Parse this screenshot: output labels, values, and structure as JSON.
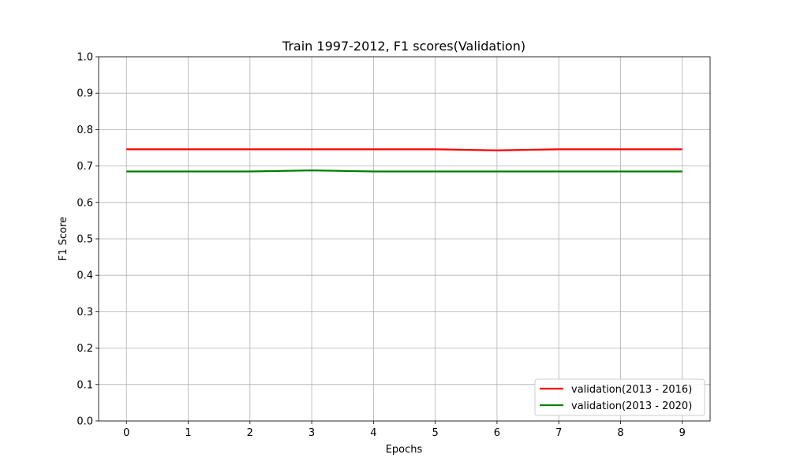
{
  "chart_data": {
    "type": "line",
    "title": "Train 1997-2012, F1 scores(Validation)",
    "xlabel": "Epochs",
    "ylabel": "F1 Score",
    "x": [
      0,
      1,
      2,
      3,
      4,
      5,
      6,
      7,
      8,
      9
    ],
    "xlim": [
      -0.45,
      9.45
    ],
    "ylim": [
      0,
      1.0
    ],
    "xticks": [
      "0",
      "1",
      "2",
      "3",
      "4",
      "5",
      "6",
      "7",
      "8",
      "9"
    ],
    "yticks": [
      "0.0",
      "0.1",
      "0.2",
      "0.3",
      "0.4",
      "0.5",
      "0.6",
      "0.7",
      "0.8",
      "0.9",
      "1.0"
    ],
    "grid": true,
    "legend_position": "lower-right",
    "series": [
      {
        "name": "validation(2013 - 2016)",
        "color": "#ff0000",
        "values": [
          0.746,
          0.746,
          0.746,
          0.746,
          0.746,
          0.746,
          0.743,
          0.746,
          0.746,
          0.746
        ]
      },
      {
        "name": "validation(2013 - 2020)",
        "color": "#008000",
        "values": [
          0.685,
          0.685,
          0.685,
          0.688,
          0.685,
          0.685,
          0.685,
          0.685,
          0.685,
          0.685
        ]
      }
    ]
  }
}
